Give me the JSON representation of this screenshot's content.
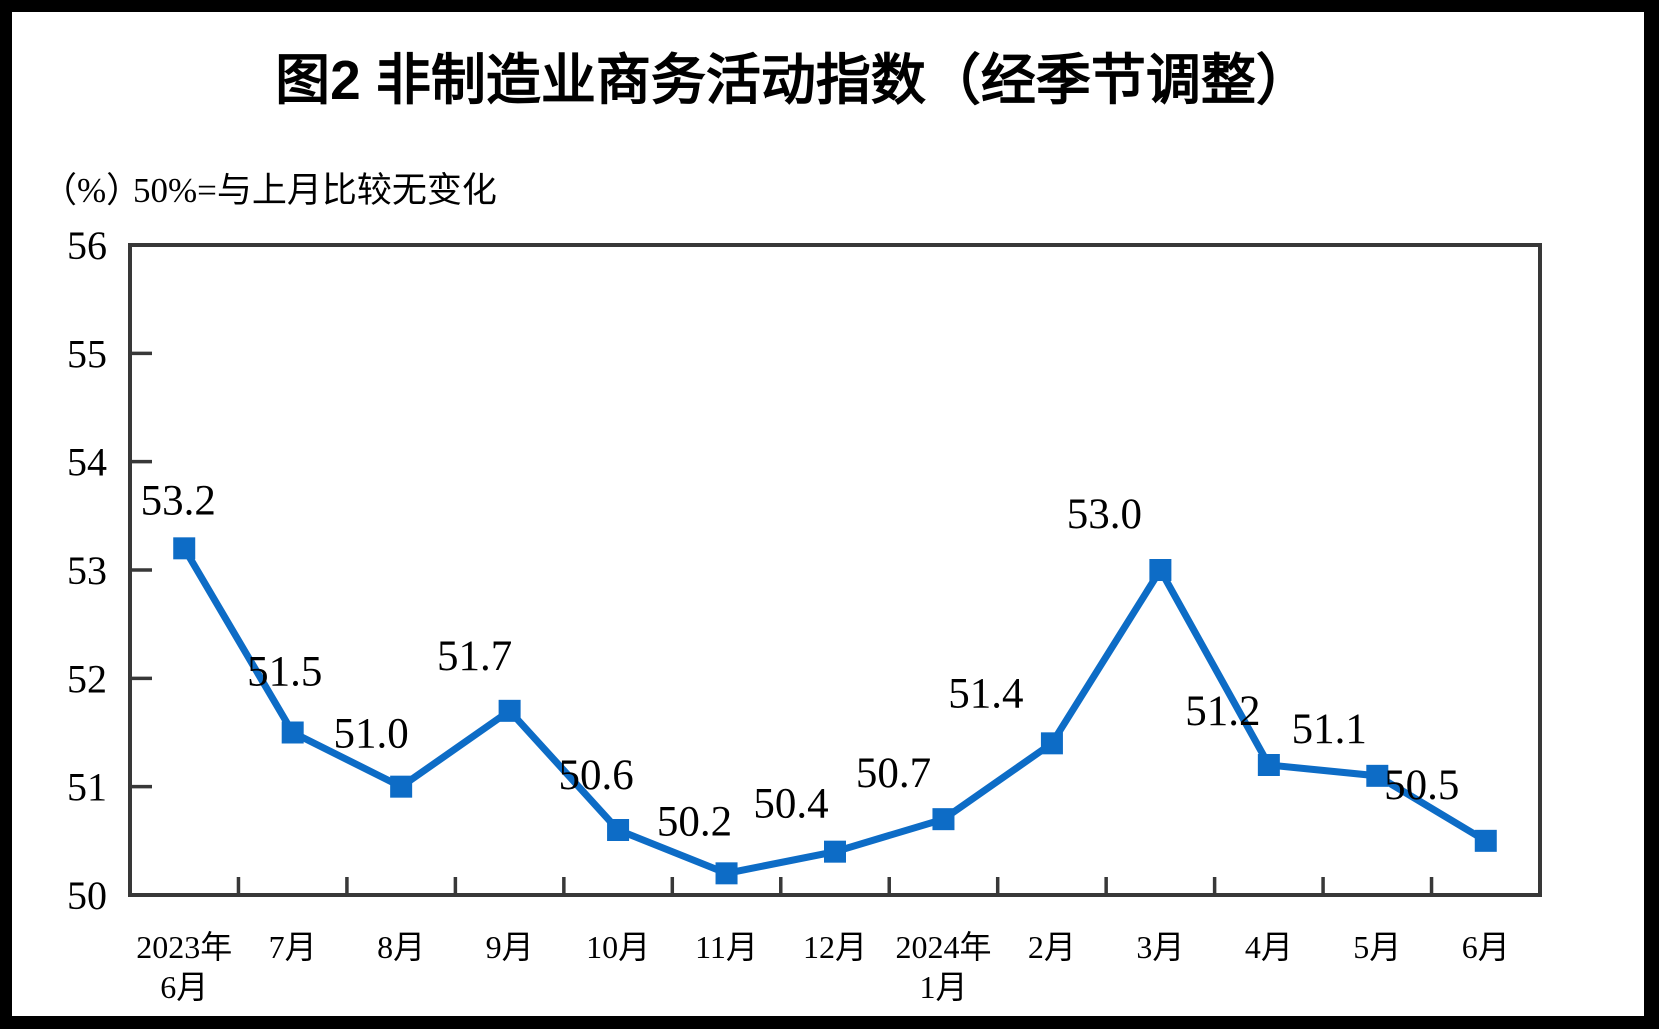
{
  "figure": {
    "title": "图2 非制造业商务活动指数（经季节调整）",
    "unit_label": "（%）",
    "note": "50%=与上月比较无变化"
  },
  "chart_data": {
    "type": "line",
    "title": "图2 非制造业商务活动指数（经季节调整）",
    "ylabel": "（%）",
    "note": "50%=与上月比较无变化",
    "categories": [
      [
        "2023年",
        "6月"
      ],
      [
        "7月"
      ],
      [
        "8月"
      ],
      [
        "9月"
      ],
      [
        "10月"
      ],
      [
        "11月"
      ],
      [
        "12月"
      ],
      [
        "2024年",
        "1月"
      ],
      [
        "2月"
      ],
      [
        "3月"
      ],
      [
        "4月"
      ],
      [
        "5月"
      ],
      [
        "6月"
      ]
    ],
    "series": [
      {
        "name": "非制造业商务活动指数（经季节调整）",
        "values": [
          53.2,
          51.5,
          51.0,
          51.7,
          50.6,
          50.2,
          50.4,
          50.7,
          51.4,
          53.0,
          51.2,
          51.1,
          50.5
        ]
      }
    ],
    "data_labels": [
      "53.2",
      "51.5",
      "51.0",
      "51.7",
      "50.6",
      "50.2",
      "50.4",
      "50.7",
      "51.4",
      "53.0",
      "51.2",
      "51.1",
      "50.5"
    ],
    "ylim": [
      50,
      56
    ],
    "yticks": [
      "56",
      "55",
      "54",
      "53",
      "52",
      "51",
      "50"
    ],
    "grid": false,
    "legend_position": "none",
    "marker": "square",
    "colors": {
      "line": "#0d6cc6",
      "marker": "#0d6cc6",
      "axis": "#383838",
      "text": "#000000",
      "background": "#ffffff",
      "frame": "#000000"
    }
  }
}
